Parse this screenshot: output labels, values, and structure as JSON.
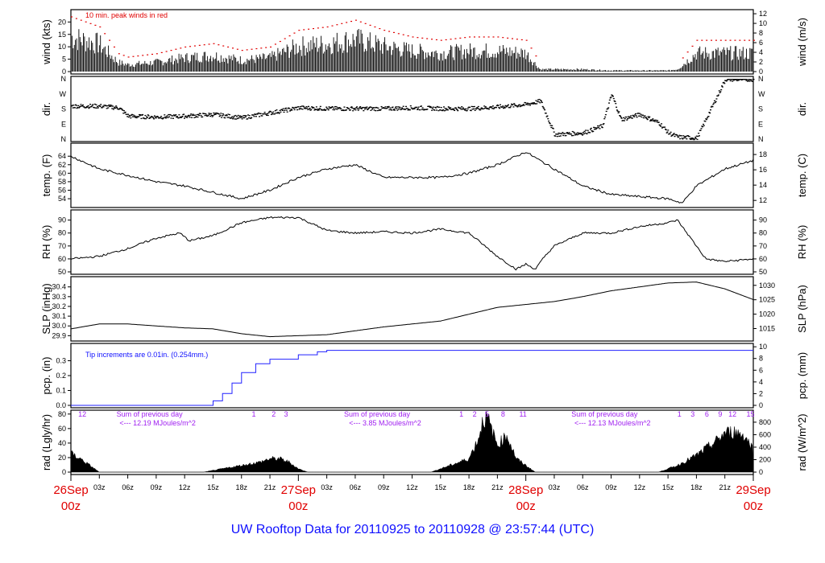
{
  "chart_data": {
    "type": "line",
    "title": "UW Rooftop Data for 20110925  to  20110928 @ 23:57:44  (UTC)",
    "x_unit": "hours since 26Sep 00z",
    "xlim": [
      0,
      72
    ],
    "x_major": [
      {
        "h": 0,
        "date": "26Sep",
        "time": "00z"
      },
      {
        "h": 24,
        "date": "27Sep",
        "time": "00z"
      },
      {
        "h": 48,
        "date": "28Sep",
        "time": "00z"
      },
      {
        "h": 72,
        "date": "29Sep",
        "time": "00z"
      }
    ],
    "x_minor": [
      "03z",
      "06z",
      "09z",
      "12z",
      "15z",
      "18z",
      "21z"
    ],
    "panels": [
      {
        "id": "wind",
        "ylabel": "wind (kts)",
        "ylabel_right": "wind (m/s)",
        "ylim": [
          0,
          24
        ],
        "yticks": [
          0,
          5,
          10,
          15,
          20
        ],
        "right_ticks": [
          0,
          2,
          4,
          6,
          8,
          10,
          12
        ],
        "right_factor": 1.944,
        "legend": "10 min. peak winds in red",
        "x": [
          0,
          3,
          5,
          6,
          9,
          12,
          15,
          18,
          21,
          24,
          27,
          30,
          33,
          36,
          39,
          42,
          45,
          48,
          49.5,
          51,
          54,
          57,
          60,
          63,
          64,
          66,
          69,
          72
        ],
        "y": [
          15,
          12,
          4,
          3,
          4,
          6,
          7,
          5,
          6,
          11,
          12,
          14,
          11,
          9,
          8,
          9,
          9,
          8,
          1,
          1,
          1,
          0.5,
          0.5,
          0.5,
          1,
          8,
          8,
          8
        ]
      },
      {
        "id": "dir",
        "ylabel": "dir.",
        "ylabel_right": "dir.",
        "ylim": [
          0,
          360
        ],
        "dir_ticks": [
          "N",
          "E",
          "S",
          "W",
          "N"
        ],
        "x": [
          0,
          3,
          5,
          6,
          9,
          12,
          15,
          18,
          21,
          24,
          27,
          30,
          33,
          36,
          39,
          42,
          45,
          48,
          49.5,
          51,
          54,
          56,
          57,
          58,
          60,
          62,
          63,
          64,
          66,
          69,
          72
        ],
        "y": [
          200,
          200,
          190,
          140,
          135,
          140,
          150,
          130,
          160,
          190,
          185,
          185,
          185,
          190,
          185,
          185,
          195,
          210,
          230,
          30,
          40,
          80,
          270,
          120,
          150,
          100,
          40,
          15,
          10,
          360,
          360
        ]
      },
      {
        "id": "temp",
        "ylabel": "temp. (F)",
        "ylabel_right": "temp. (C)",
        "ylim": [
          52.5,
          66.5
        ],
        "yticks": [
          54,
          56,
          58,
          60,
          62,
          64
        ],
        "right_ticks": [
          12,
          14,
          16,
          18
        ],
        "x": [
          0,
          3,
          6,
          9,
          12,
          15,
          18,
          21,
          24,
          27,
          30,
          33,
          36,
          39,
          42,
          45,
          48,
          51,
          54,
          57,
          60,
          63,
          64.5,
          66,
          69,
          72
        ],
        "y": [
          64,
          61,
          59.5,
          58,
          57,
          55.5,
          54,
          56,
          59,
          61,
          62,
          59,
          59,
          59,
          60,
          62,
          65,
          61,
          57,
          55,
          54.5,
          54,
          53,
          57,
          61,
          63
        ]
      },
      {
        "id": "rh",
        "ylabel": "RH (%)",
        "ylabel_right": "RH (%)",
        "ylim": [
          50,
          96
        ],
        "yticks": [
          50,
          60,
          70,
          80,
          90
        ],
        "right_ticks": [
          50,
          60,
          70,
          80,
          90
        ],
        "x": [
          0,
          3,
          6,
          9,
          11.5,
          12.5,
          15,
          18,
          21,
          24,
          27,
          30,
          33,
          36,
          39,
          42,
          45,
          47,
          48,
          49,
          50,
          51,
          54,
          57,
          60,
          63,
          64,
          66,
          67,
          69,
          72
        ],
        "y": [
          60,
          62,
          68,
          76,
          80,
          74,
          78,
          88,
          92,
          92,
          82,
          80,
          81,
          80,
          83,
          80,
          62,
          52,
          56,
          52,
          62,
          70,
          80,
          80,
          85,
          88,
          90,
          70,
          60,
          58,
          60
        ]
      },
      {
        "id": "slp",
        "ylabel": "SLP (inHg)",
        "ylabel_right": "SLP (hPa)",
        "ylim": [
          29.87,
          30.48
        ],
        "yticks": [
          29.9,
          30.0,
          30.1,
          30.2,
          30.3,
          30.4
        ],
        "right_ticks": [
          1015,
          1020,
          1025,
          1030
        ],
        "x": [
          0,
          3,
          6,
          9,
          12,
          15,
          18,
          21,
          24,
          27,
          30,
          33,
          36,
          39,
          42,
          45,
          48,
          51,
          54,
          57,
          60,
          63,
          66,
          69,
          72
        ],
        "y": [
          29.97,
          30.02,
          30.02,
          30.0,
          29.98,
          29.97,
          29.92,
          29.89,
          29.9,
          29.91,
          29.95,
          29.99,
          30.02,
          30.05,
          30.12,
          30.19,
          30.22,
          30.25,
          30.3,
          30.36,
          30.4,
          30.44,
          30.45,
          30.38,
          30.27
        ]
      },
      {
        "id": "pcp",
        "ylabel": "pcp. (in)",
        "ylabel_right": "pcp. (mm)",
        "ylim": [
          0,
          0.4
        ],
        "yticks": [
          0.0,
          0.1,
          0.2,
          0.3
        ],
        "right_ticks": [
          0,
          2,
          4,
          6,
          8,
          10
        ],
        "note": "Tip increments are 0.01in. (0.254mm.)",
        "x": [
          0,
          13.7,
          15,
          16,
          17,
          18,
          19.5,
          21,
          24,
          26,
          27,
          72
        ],
        "y": [
          0,
          0,
          0.03,
          0.08,
          0.15,
          0.22,
          0.28,
          0.31,
          0.34,
          0.36,
          0.37,
          0.37
        ]
      },
      {
        "id": "rad",
        "ylabel": "rad (Lgly/hr)",
        "ylabel_right": "rad (W/m^2)",
        "ylim": [
          0,
          82
        ],
        "yticks": [
          0,
          20,
          40,
          60,
          80
        ],
        "right_ticks": [
          0,
          200,
          400,
          600,
          800
        ],
        "x": [
          0,
          1,
          2,
          3,
          14,
          16,
          18,
          20,
          21,
          22,
          23,
          24,
          25,
          38,
          40,
          42,
          43,
          43.5,
          44,
          45,
          46,
          47,
          48,
          49,
          62,
          64,
          66,
          68,
          69,
          70,
          71,
          72
        ],
        "y": [
          28,
          20,
          10,
          0,
          0,
          5,
          10,
          15,
          20,
          20,
          15,
          5,
          0,
          0,
          10,
          20,
          50,
          80,
          78,
          40,
          55,
          20,
          10,
          0,
          0,
          10,
          25,
          45,
          58,
          60,
          55,
          35
        ],
        "hour_marks": [
          {
            "h": 1.2,
            "t": "12"
          },
          {
            "h": 19.3,
            "t": "1"
          },
          {
            "h": 21.4,
            "t": "2"
          },
          {
            "h": 22.7,
            "t": "3"
          },
          {
            "h": 41.2,
            "t": "1"
          },
          {
            "h": 42.6,
            "t": "2"
          },
          {
            "h": 43.9,
            "t": "5"
          },
          {
            "h": 45.6,
            "t": "8"
          },
          {
            "h": 47.7,
            "t": "11"
          },
          {
            "h": 64.2,
            "t": "1"
          },
          {
            "h": 65.6,
            "t": "3"
          },
          {
            "h": 67.1,
            "t": "6"
          },
          {
            "h": 68.5,
            "t": "9"
          },
          {
            "h": 69.8,
            "t": "12"
          },
          {
            "h": 71.7,
            "t": "15"
          }
        ],
        "daily_sums": [
          {
            "h": 10,
            "label": "Sum of previous day",
            "value": "<--- 12.19 MJoules/m^2"
          },
          {
            "h": 34,
            "label": "Sum of previous day",
            "value": "<--- 3.85 MJoules/m^2"
          },
          {
            "h": 58,
            "label": "Sum of previous day",
            "value": "<--- 12.13 MJoules/m^2"
          }
        ]
      }
    ]
  }
}
